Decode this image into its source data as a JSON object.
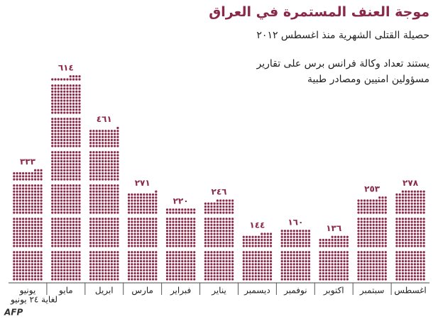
{
  "chart_data": {
    "type": "dot",
    "title": "موجة العنف المستمرة في العراق",
    "subtitle": "حصيلة القتلى الشهرية منذ اغسطس ٢٠١٢",
    "annotation": [
      "يستند تعداد وكالة فرانس برس على تقارير",
      "مسؤولين امنيين ومصادر طبية"
    ],
    "footnote": "لغاية ٢٤ يونيو",
    "source": "AFP",
    "categories": [
      "اغسطس",
      "سبتمبر",
      "اكتوبر",
      "نوفمبر",
      "ديسمبر",
      "يناير",
      "فبراير",
      "مارس",
      "ابريل",
      "مايو",
      "يونيو"
    ],
    "values": [
      278,
      253,
      136,
      160,
      144,
      246,
      220,
      271,
      461,
      614,
      333
    ],
    "value_labels": [
      "٢٧٨",
      "٢٥٣",
      "١٣٦",
      "١٦٠",
      "١٤٤",
      "٢٤٦",
      "٢٢٠",
      "٢٧١",
      "٤٦١",
      "٦١٤",
      "٣٣٣"
    ],
    "color": "#8a2848"
  }
}
